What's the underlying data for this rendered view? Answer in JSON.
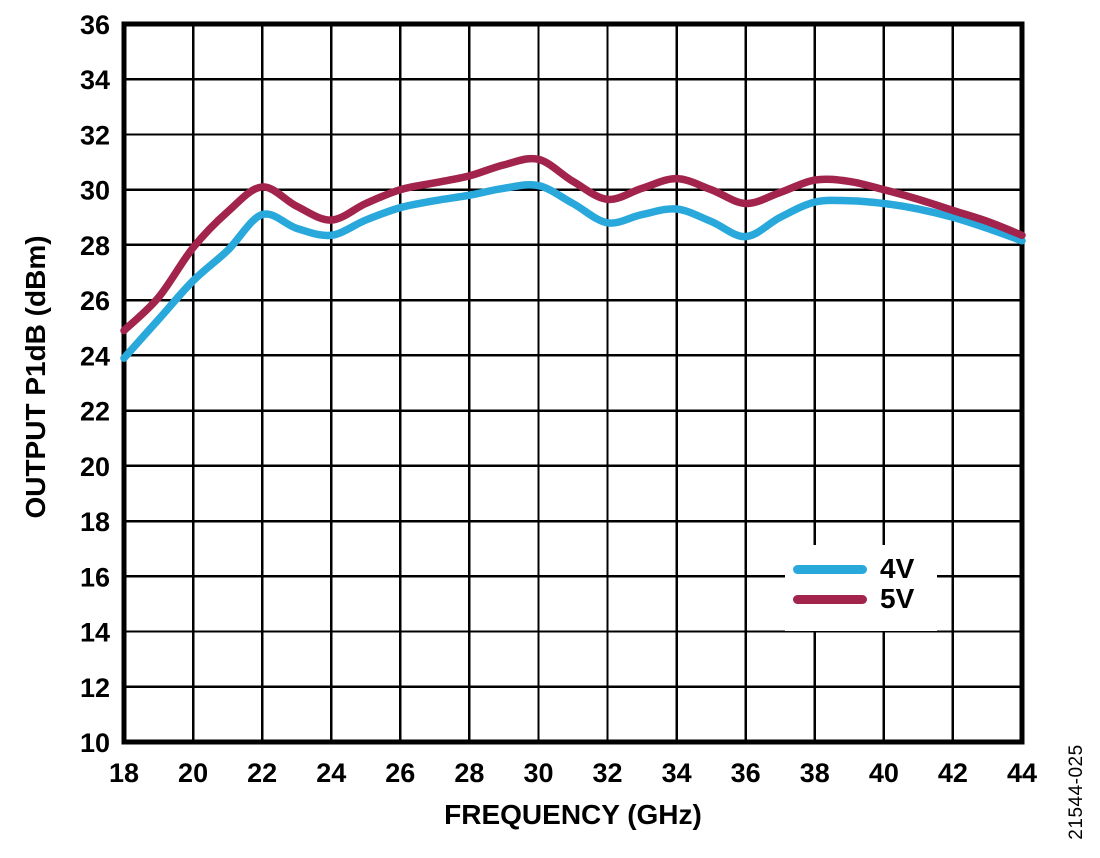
{
  "figure": {
    "watermark": "21544-025",
    "background": "#ffffff",
    "line_color": "#000000"
  },
  "chart_data": {
    "type": "line",
    "title": "",
    "xlabel": "FREQUENCY (GHz)",
    "ylabel": "OUTPUT P1dB (dBm)",
    "xlim": [
      18,
      44
    ],
    "ylim": [
      10,
      36
    ],
    "x_ticks": [
      18,
      20,
      22,
      24,
      26,
      28,
      30,
      32,
      34,
      36,
      38,
      40,
      42,
      44
    ],
    "y_ticks": [
      10,
      12,
      14,
      16,
      18,
      20,
      22,
      24,
      26,
      28,
      30,
      32,
      34,
      36
    ],
    "grid": true,
    "legend_position": "inside-right-center",
    "x": [
      18,
      19,
      20,
      21,
      22,
      23,
      24,
      25,
      26,
      27,
      28,
      29,
      30,
      31,
      32,
      33,
      34,
      35,
      36,
      37,
      38,
      39,
      40,
      41,
      42,
      43,
      44
    ],
    "series": [
      {
        "name": "4V",
        "color": "#29A8DC",
        "values": [
          23.9,
          25.3,
          26.7,
          27.8,
          29.1,
          28.6,
          28.35,
          28.9,
          29.35,
          29.6,
          29.8,
          30.05,
          30.15,
          29.5,
          28.8,
          29.1,
          29.3,
          28.85,
          28.3,
          29.0,
          29.55,
          29.6,
          29.5,
          29.3,
          29.0,
          28.6,
          28.15
        ]
      },
      {
        "name": "5V",
        "color": "#A2234B",
        "values": [
          24.9,
          26.1,
          27.9,
          29.2,
          30.1,
          29.4,
          28.9,
          29.5,
          30.0,
          30.25,
          30.5,
          30.9,
          31.1,
          30.3,
          29.65,
          30.05,
          30.4,
          30.0,
          29.5,
          29.9,
          30.35,
          30.3,
          30.0,
          29.65,
          29.25,
          28.85,
          28.35
        ]
      }
    ]
  }
}
